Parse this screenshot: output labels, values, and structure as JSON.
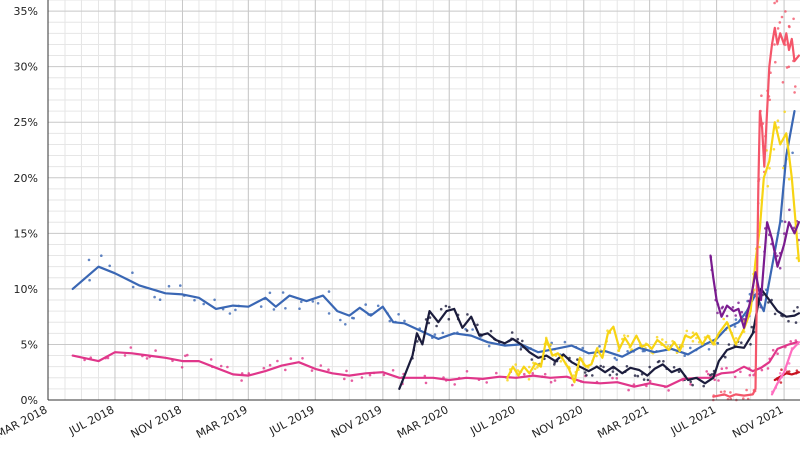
{
  "chart_data": {
    "type": "line",
    "title": "",
    "xlabel": "",
    "ylabel": "",
    "ylim": [
      0,
      36
    ],
    "y_ticks": [
      {
        "value": 0,
        "label": "0%"
      },
      {
        "value": 5,
        "label": "5%"
      },
      {
        "value": 10,
        "label": "10%"
      },
      {
        "value": 15,
        "label": "15%"
      },
      {
        "value": 20,
        "label": "20%"
      },
      {
        "value": 25,
        "label": "25%"
      },
      {
        "value": 30,
        "label": "30%"
      },
      {
        "value": 35,
        "label": "35%"
      }
    ],
    "x_ticks": [
      {
        "date": "2018-03-01",
        "label": "MAR 2018"
      },
      {
        "date": "2018-07-01",
        "label": "JUL 2018"
      },
      {
        "date": "2018-11-01",
        "label": "NOV 2018"
      },
      {
        "date": "2019-03-01",
        "label": "MAR 2019"
      },
      {
        "date": "2019-07-01",
        "label": "JUL 2019"
      },
      {
        "date": "2019-11-01",
        "label": "NOV 2019"
      },
      {
        "date": "2020-03-01",
        "label": "MAR 2020"
      },
      {
        "date": "2020-07-01",
        "label": "JUL 2020"
      },
      {
        "date": "2020-11-01",
        "label": "NOV 2020"
      },
      {
        "date": "2021-03-01",
        "label": "MAR 2021"
      },
      {
        "date": "2021-07-01",
        "label": "JUL 2021"
      },
      {
        "date": "2021-11-01",
        "label": "NOV 2021"
      }
    ],
    "grid": true,
    "legend": "none",
    "series": [
      {
        "color": "#3a67b4",
        "points": [
          [
            "2018-04-15",
            10.0
          ],
          [
            "2018-06-01",
            12.0
          ],
          [
            "2018-07-01",
            11.4
          ],
          [
            "2018-08-15",
            10.3
          ],
          [
            "2018-10-01",
            9.6
          ],
          [
            "2018-11-01",
            9.5
          ],
          [
            "2018-12-01",
            9.2
          ],
          [
            "2019-01-01",
            8.2
          ],
          [
            "2019-02-01",
            8.5
          ],
          [
            "2019-03-01",
            8.4
          ],
          [
            "2019-04-01",
            9.2
          ],
          [
            "2019-04-20",
            8.4
          ],
          [
            "2019-05-15",
            9.4
          ],
          [
            "2019-06-15",
            8.9
          ],
          [
            "2019-07-15",
            9.4
          ],
          [
            "2019-08-10",
            8.0
          ],
          [
            "2019-09-01",
            7.6
          ],
          [
            "2019-09-20",
            8.3
          ],
          [
            "2019-10-10",
            7.6
          ],
          [
            "2019-11-01",
            8.4
          ],
          [
            "2019-11-20",
            7.0
          ],
          [
            "2019-12-10",
            6.9
          ],
          [
            "2020-01-10",
            6.2
          ],
          [
            "2020-02-10",
            5.5
          ],
          [
            "2020-03-10",
            6.0
          ],
          [
            "2020-04-10",
            5.8
          ],
          [
            "2020-05-10",
            5.2
          ],
          [
            "2020-06-10",
            4.9
          ],
          [
            "2020-07-10",
            5.0
          ],
          [
            "2020-08-10",
            4.3
          ],
          [
            "2020-09-10",
            4.6
          ],
          [
            "2020-10-10",
            4.9
          ],
          [
            "2020-11-10",
            4.2
          ],
          [
            "2020-12-10",
            4.4
          ],
          [
            "2021-01-10",
            3.9
          ],
          [
            "2021-02-10",
            4.7
          ],
          [
            "2021-03-10",
            4.3
          ],
          [
            "2021-04-10",
            4.6
          ],
          [
            "2021-05-10",
            4.1
          ],
          [
            "2021-06-10",
            5.0
          ],
          [
            "2021-07-01",
            5.5
          ],
          [
            "2021-07-20",
            6.5
          ],
          [
            "2021-08-10",
            7.0
          ],
          [
            "2021-08-25",
            8.0
          ],
          [
            "2021-09-10",
            9.5
          ],
          [
            "2021-09-25",
            8.0
          ],
          [
            "2021-10-10",
            12.0
          ],
          [
            "2021-10-25",
            16.0
          ],
          [
            "2021-11-05",
            22.0
          ],
          [
            "2021-11-20",
            26.0
          ]
        ]
      },
      {
        "color": "#e0368a",
        "points": [
          [
            "2018-04-15",
            4.0
          ],
          [
            "2018-06-01",
            3.5
          ],
          [
            "2018-07-01",
            4.3
          ],
          [
            "2018-08-01",
            4.2
          ],
          [
            "2018-09-01",
            4.0
          ],
          [
            "2018-10-01",
            3.8
          ],
          [
            "2018-11-01",
            3.5
          ],
          [
            "2018-12-01",
            3.5
          ],
          [
            "2019-01-01",
            2.9
          ],
          [
            "2019-02-01",
            2.3
          ],
          [
            "2019-03-01",
            2.2
          ],
          [
            "2019-04-01",
            2.6
          ],
          [
            "2019-05-01",
            3.1
          ],
          [
            "2019-06-01",
            3.4
          ],
          [
            "2019-07-01",
            2.8
          ],
          [
            "2019-08-01",
            2.4
          ],
          [
            "2019-09-01",
            2.2
          ],
          [
            "2019-10-01",
            2.4
          ],
          [
            "2019-11-01",
            2.5
          ],
          [
            "2019-12-01",
            2.0
          ],
          [
            "2020-01-01",
            2.0
          ],
          [
            "2020-02-01",
            2.0
          ],
          [
            "2020-03-01",
            1.8
          ],
          [
            "2020-04-01",
            2.0
          ],
          [
            "2020-05-01",
            1.9
          ],
          [
            "2020-06-01",
            2.1
          ],
          [
            "2020-07-01",
            2.0
          ],
          [
            "2020-08-01",
            2.2
          ],
          [
            "2020-09-01",
            2.0
          ],
          [
            "2020-10-01",
            2.1
          ],
          [
            "2020-11-01",
            1.6
          ],
          [
            "2020-12-01",
            1.5
          ],
          [
            "2021-01-01",
            1.6
          ],
          [
            "2021-02-01",
            1.2
          ],
          [
            "2021-03-01",
            1.5
          ],
          [
            "2021-04-01",
            1.2
          ],
          [
            "2021-05-01",
            1.9
          ],
          [
            "2021-06-01",
            2.0
          ],
          [
            "2021-06-20",
            2.0
          ],
          [
            "2021-07-10",
            2.4
          ],
          [
            "2021-08-01",
            2.5
          ],
          [
            "2021-08-20",
            3.0
          ],
          [
            "2021-09-05",
            2.6
          ],
          [
            "2021-09-20",
            2.9
          ],
          [
            "2021-10-05",
            3.4
          ],
          [
            "2021-10-20",
            4.6
          ],
          [
            "2021-11-10",
            5.0
          ],
          [
            "2021-11-25",
            5.2
          ]
        ]
      },
      {
        "color": "#1b1c3c",
        "points": [
          [
            "2019-12-01",
            1.0
          ],
          [
            "2019-12-25",
            4.0
          ],
          [
            "2020-01-02",
            6.0
          ],
          [
            "2020-01-12",
            5.0
          ],
          [
            "2020-01-25",
            8.0
          ],
          [
            "2020-02-10",
            7.0
          ],
          [
            "2020-02-25",
            8.0
          ],
          [
            "2020-03-10",
            8.2
          ],
          [
            "2020-03-25",
            6.5
          ],
          [
            "2020-04-10",
            7.5
          ],
          [
            "2020-04-25",
            5.8
          ],
          [
            "2020-05-10",
            6.0
          ],
          [
            "2020-05-25",
            5.4
          ],
          [
            "2020-06-10",
            5.1
          ],
          [
            "2020-06-25",
            5.5
          ],
          [
            "2020-07-10",
            5.0
          ],
          [
            "2020-07-25",
            4.3
          ],
          [
            "2020-08-10",
            3.8
          ],
          [
            "2020-08-25",
            4.0
          ],
          [
            "2020-09-10",
            3.5
          ],
          [
            "2020-09-25",
            4.1
          ],
          [
            "2020-10-10",
            3.4
          ],
          [
            "2020-10-25",
            3.0
          ],
          [
            "2020-11-10",
            2.6
          ],
          [
            "2020-11-25",
            3.0
          ],
          [
            "2020-12-10",
            2.5
          ],
          [
            "2020-12-25",
            3.0
          ],
          [
            "2021-01-10",
            2.4
          ],
          [
            "2021-01-25",
            2.9
          ],
          [
            "2021-02-10",
            2.7
          ],
          [
            "2021-02-25",
            2.2
          ],
          [
            "2021-03-10",
            2.8
          ],
          [
            "2021-03-25",
            3.2
          ],
          [
            "2021-04-10",
            2.5
          ],
          [
            "2021-04-25",
            2.8
          ],
          [
            "2021-05-10",
            1.8
          ],
          [
            "2021-05-25",
            2.0
          ],
          [
            "2021-06-10",
            1.5
          ],
          [
            "2021-06-25",
            2.0
          ],
          [
            "2021-07-05",
            3.5
          ],
          [
            "2021-07-20",
            4.5
          ],
          [
            "2021-08-05",
            4.8
          ],
          [
            "2021-08-20",
            4.7
          ],
          [
            "2021-09-05",
            6.0
          ],
          [
            "2021-09-20",
            10.0
          ],
          [
            "2021-10-05",
            9.0
          ],
          [
            "2021-10-20",
            8.0
          ],
          [
            "2021-11-05",
            7.5
          ],
          [
            "2021-11-20",
            7.6
          ],
          [
            "2021-11-28",
            7.8
          ]
        ]
      },
      {
        "color": "#f7d414",
        "points": [
          [
            "2020-06-15",
            2.0
          ],
          [
            "2020-06-25",
            3.0
          ],
          [
            "2020-07-05",
            2.2
          ],
          [
            "2020-07-15",
            3.0
          ],
          [
            "2020-07-25",
            2.4
          ],
          [
            "2020-08-05",
            3.3
          ],
          [
            "2020-08-15",
            3.0
          ],
          [
            "2020-08-25",
            5.5
          ],
          [
            "2020-09-05",
            4.0
          ],
          [
            "2020-09-15",
            4.2
          ],
          [
            "2020-09-25",
            3.6
          ],
          [
            "2020-10-05",
            2.8
          ],
          [
            "2020-10-15",
            1.6
          ],
          [
            "2020-10-25",
            3.8
          ],
          [
            "2020-11-05",
            3.0
          ],
          [
            "2020-11-15",
            3.2
          ],
          [
            "2020-11-25",
            4.6
          ],
          [
            "2020-12-05",
            3.8
          ],
          [
            "2020-12-15",
            6.0
          ],
          [
            "2020-12-25",
            6.6
          ],
          [
            "2021-01-05",
            4.6
          ],
          [
            "2021-01-15",
            5.6
          ],
          [
            "2021-01-25",
            4.8
          ],
          [
            "2021-02-05",
            5.8
          ],
          [
            "2021-02-15",
            4.8
          ],
          [
            "2021-02-25",
            5.0
          ],
          [
            "2021-03-05",
            4.6
          ],
          [
            "2021-03-15",
            5.4
          ],
          [
            "2021-03-25",
            5.0
          ],
          [
            "2021-04-05",
            4.5
          ],
          [
            "2021-04-15",
            5.2
          ],
          [
            "2021-04-25",
            4.4
          ],
          [
            "2021-05-05",
            5.8
          ],
          [
            "2021-05-15",
            5.6
          ],
          [
            "2021-05-25",
            6.0
          ],
          [
            "2021-06-05",
            5.0
          ],
          [
            "2021-06-15",
            5.8
          ],
          [
            "2021-06-25",
            5.0
          ],
          [
            "2021-07-05",
            6.0
          ],
          [
            "2021-07-20",
            7.0
          ],
          [
            "2021-08-05",
            5.0
          ],
          [
            "2021-08-20",
            6.4
          ],
          [
            "2021-09-01",
            8.0
          ],
          [
            "2021-09-10",
            12.5
          ],
          [
            "2021-09-18",
            15.5
          ],
          [
            "2021-09-25",
            20.0
          ],
          [
            "2021-10-05",
            21.5
          ],
          [
            "2021-10-15",
            25.0
          ],
          [
            "2021-10-25",
            23.0
          ],
          [
            "2021-11-05",
            24.0
          ],
          [
            "2021-11-15",
            20.0
          ],
          [
            "2021-11-28",
            12.5
          ]
        ]
      },
      {
        "color": "#f4566a",
        "points": [
          [
            "2021-06-25",
            0.3
          ],
          [
            "2021-07-05",
            0.4
          ],
          [
            "2021-07-15",
            0.5
          ],
          [
            "2021-07-25",
            0.3
          ],
          [
            "2021-08-05",
            0.5
          ],
          [
            "2021-08-20",
            0.4
          ],
          [
            "2021-09-05",
            0.5
          ],
          [
            "2021-09-10",
            1.0
          ],
          [
            "2021-09-15",
            19.0
          ],
          [
            "2021-09-18",
            26.0
          ],
          [
            "2021-09-22",
            24.5
          ],
          [
            "2021-09-26",
            21.0
          ],
          [
            "2021-10-01",
            26.0
          ],
          [
            "2021-10-05",
            30.0
          ],
          [
            "2021-10-10",
            32.0
          ],
          [
            "2021-10-15",
            33.5
          ],
          [
            "2021-10-20",
            32.0
          ],
          [
            "2021-10-25",
            33.0
          ],
          [
            "2021-11-01",
            32.0
          ],
          [
            "2021-11-05",
            33.0
          ],
          [
            "2021-11-10",
            31.5
          ],
          [
            "2021-11-15",
            32.5
          ],
          [
            "2021-11-20",
            30.5
          ],
          [
            "2021-11-28",
            31.0
          ]
        ]
      },
      {
        "color": "#7a1b8f",
        "points": [
          [
            "2021-06-20",
            13.0
          ],
          [
            "2021-06-25",
            11.0
          ],
          [
            "2021-07-01",
            9.0
          ],
          [
            "2021-07-10",
            7.5
          ],
          [
            "2021-07-20",
            8.5
          ],
          [
            "2021-08-01",
            8.0
          ],
          [
            "2021-08-10",
            8.2
          ],
          [
            "2021-08-20",
            6.5
          ],
          [
            "2021-09-01",
            9.0
          ],
          [
            "2021-09-10",
            11.5
          ],
          [
            "2021-09-20",
            9.0
          ],
          [
            "2021-10-01",
            16.0
          ],
          [
            "2021-10-10",
            14.5
          ],
          [
            "2021-10-20",
            12.0
          ],
          [
            "2021-11-01",
            14.0
          ],
          [
            "2021-11-10",
            16.0
          ],
          [
            "2021-11-20",
            15.0
          ],
          [
            "2021-11-28",
            16.0
          ]
        ]
      },
      {
        "color": "#c80f1e",
        "points": [
          [
            "2021-10-15",
            1.8
          ],
          [
            "2021-10-25",
            2.1
          ],
          [
            "2021-11-05",
            2.4
          ],
          [
            "2021-11-15",
            2.3
          ],
          [
            "2021-11-28",
            2.5
          ]
        ]
      },
      {
        "color": "#ff6ec0",
        "points": [
          [
            "2021-10-10",
            0.5
          ],
          [
            "2021-10-20",
            1.5
          ],
          [
            "2021-11-01",
            2.5
          ],
          [
            "2021-11-15",
            4.5
          ],
          [
            "2021-11-28",
            5.2
          ]
        ]
      }
    ]
  }
}
